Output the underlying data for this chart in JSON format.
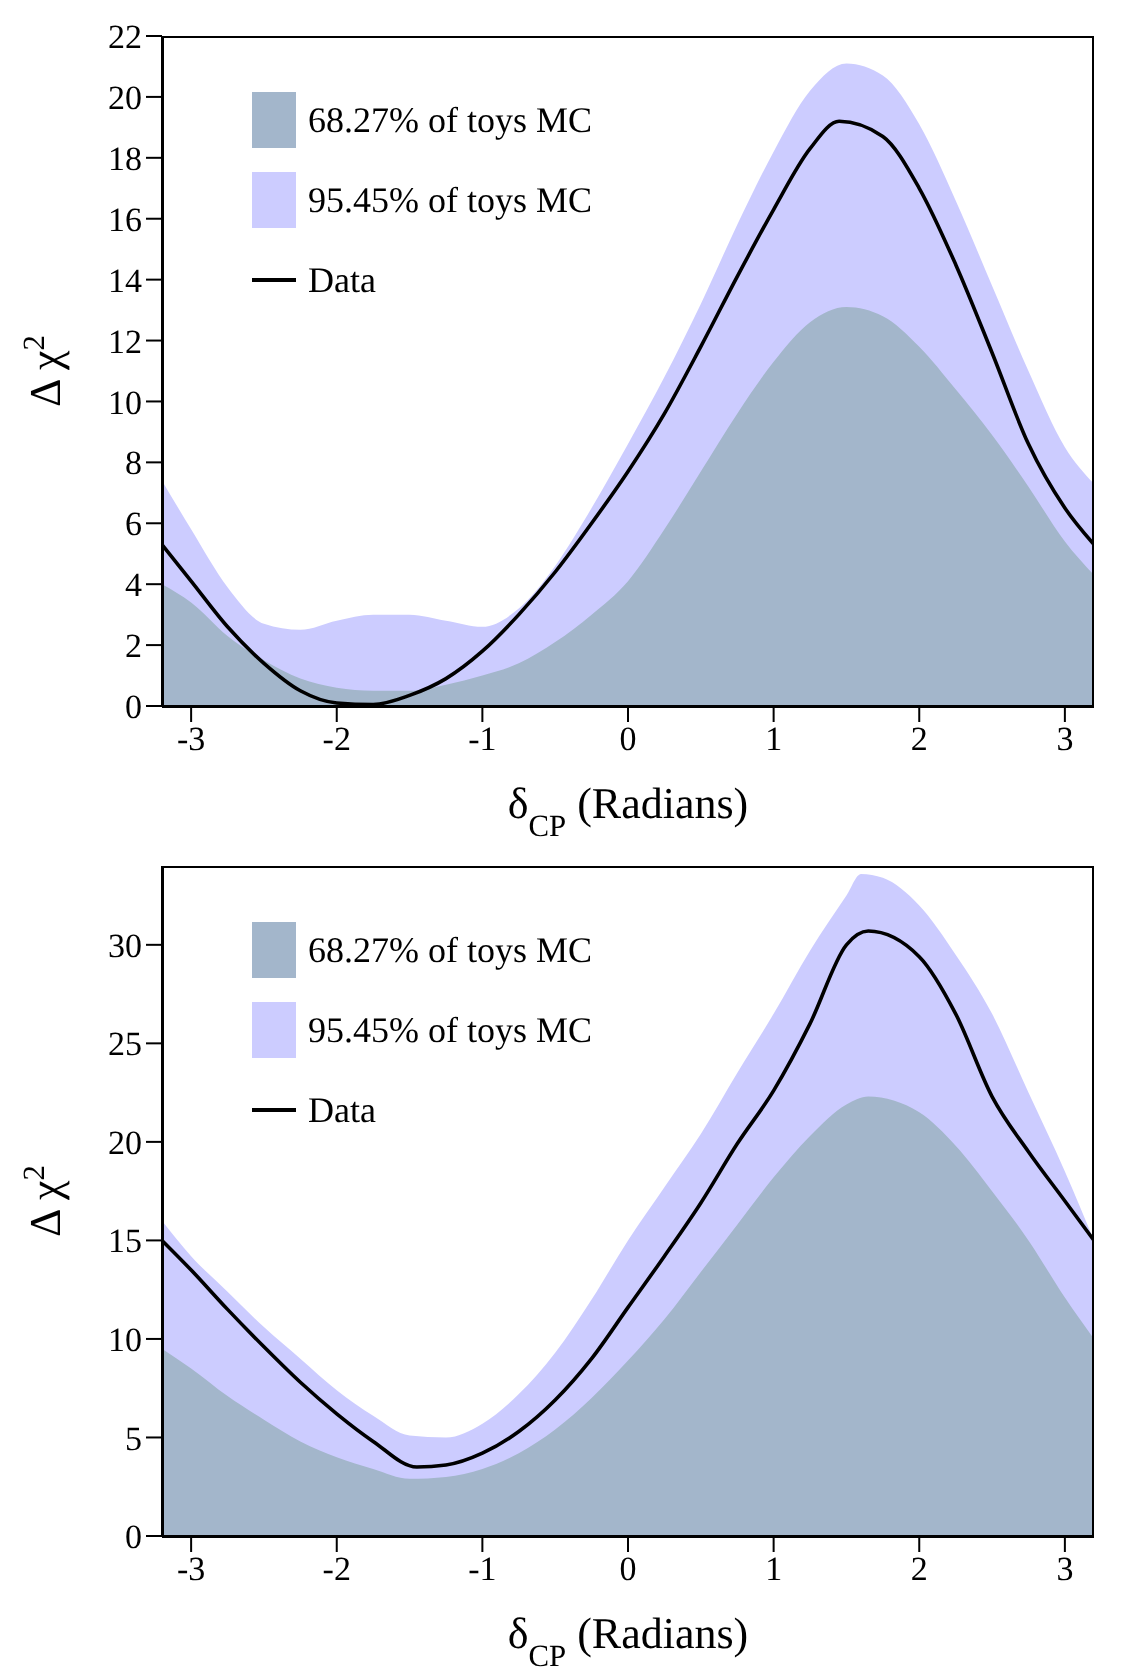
{
  "chart_data": [
    {
      "type": "area",
      "xlabel": "δ$_{CP}$ (Radians)",
      "ylabel": "Δ χ$^{2}$",
      "xlim": [
        -3.2,
        3.2
      ],
      "xticks": [
        -3,
        -2,
        -1,
        0,
        1,
        2,
        3
      ],
      "ylim": [
        0,
        22
      ],
      "yticks": [
        0,
        2,
        4,
        6,
        8,
        10,
        12,
        14,
        16,
        18,
        20,
        22
      ],
      "legend": "top left",
      "series": [
        {
          "name": "68.27% of toys MC",
          "color": "#a3b6cb",
          "x": [
            -3.2,
            -3,
            -2.75,
            -2.5,
            -2.25,
            -2,
            -1.75,
            -1.5,
            -1.25,
            -1,
            -0.75,
            -0.5,
            -0.25,
            0,
            0.25,
            0.5,
            0.75,
            1,
            1.25,
            1.5,
            1.75,
            2,
            2.25,
            2.5,
            2.75,
            3,
            3.2
          ],
          "values": [
            4.0,
            3.4,
            2.3,
            1.5,
            0.9,
            0.6,
            0.5,
            0.5,
            0.7,
            1.0,
            1.4,
            2.1,
            3.0,
            4.1,
            5.8,
            7.7,
            9.6,
            11.3,
            12.6,
            13.1,
            12.8,
            11.8,
            10.4,
            8.9,
            7.2,
            5.4,
            4.3
          ]
        },
        {
          "name": "95.45% of toys MC",
          "color": "#ccccff",
          "x": [
            -3.2,
            -3,
            -2.75,
            -2.5,
            -2.25,
            -2,
            -1.75,
            -1.5,
            -1.25,
            -1,
            -0.75,
            -0.5,
            -0.25,
            0,
            0.25,
            0.5,
            0.75,
            1,
            1.25,
            1.5,
            1.75,
            2,
            2.25,
            2.5,
            2.75,
            3,
            3.2
          ],
          "values": [
            7.4,
            5.8,
            3.9,
            2.7,
            2.5,
            2.8,
            3.0,
            3.0,
            2.8,
            2.6,
            3.2,
            4.6,
            6.5,
            8.6,
            10.8,
            13.2,
            15.8,
            18.2,
            20.2,
            21.1,
            20.7,
            19.1,
            16.6,
            13.8,
            11.0,
            8.5,
            7.3
          ]
        },
        {
          "name": "Data",
          "type": "line",
          "color": "#000000",
          "x": [
            -3.2,
            -3,
            -2.75,
            -2.5,
            -2.25,
            -2,
            -1.75,
            -1.5,
            -1.25,
            -1,
            -0.75,
            -0.5,
            -0.25,
            0,
            0.25,
            0.5,
            0.75,
            1,
            1.25,
            1.45,
            1.75,
            2,
            2.25,
            2.5,
            2.75,
            3,
            3.2
          ],
          "values": [
            5.3,
            4.1,
            2.6,
            1.4,
            0.5,
            0.1,
            0.05,
            0.35,
            0.9,
            1.8,
            3.0,
            4.4,
            6.0,
            7.7,
            9.6,
            11.8,
            14.1,
            16.3,
            18.3,
            19.2,
            18.7,
            17.0,
            14.5,
            11.6,
            8.6,
            6.5,
            5.3
          ]
        }
      ]
    },
    {
      "type": "area",
      "xlabel": "δ$_{CP}$ (Radians)",
      "ylabel": "Δ χ$^{2}$",
      "xlim": [
        -3.2,
        3.2
      ],
      "xticks": [
        -3,
        -2,
        -1,
        0,
        1,
        2,
        3
      ],
      "ylim": [
        0,
        34
      ],
      "yticks": [
        0,
        5,
        10,
        15,
        20,
        25,
        30
      ],
      "legend": "top left",
      "series": [
        {
          "name": "68.27% of toys MC",
          "color": "#a3b6cb",
          "x": [
            -3.2,
            -3,
            -2.75,
            -2.5,
            -2.25,
            -2,
            -1.75,
            -1.5,
            -1.25,
            -1,
            -0.75,
            -0.5,
            -0.25,
            0,
            0.25,
            0.5,
            0.75,
            1,
            1.25,
            1.5,
            1.65,
            2,
            2.25,
            2.5,
            2.75,
            3,
            3.2
          ],
          "values": [
            9.5,
            8.5,
            7.1,
            5.9,
            4.8,
            4.0,
            3.4,
            2.9,
            3.0,
            3.4,
            4.2,
            5.4,
            7.0,
            8.9,
            11.0,
            13.4,
            15.8,
            18.2,
            20.3,
            21.9,
            22.3,
            21.5,
            19.8,
            17.5,
            15.0,
            12.1,
            10.0
          ]
        },
        {
          "name": "95.45% of toys MC",
          "color": "#ccccff",
          "x": [
            -3.2,
            -3,
            -2.75,
            -2.5,
            -2.25,
            -2,
            -1.75,
            -1.5,
            -1.25,
            -1,
            -0.75,
            -0.5,
            -0.25,
            0,
            0.25,
            0.5,
            0.75,
            1,
            1.25,
            1.5,
            1.6,
            1.75,
            2,
            2.25,
            2.5,
            2.75,
            3,
            3.2
          ],
          "values": [
            16.0,
            14.2,
            12.4,
            10.6,
            9.0,
            7.4,
            6.1,
            5.1,
            5.0,
            5.7,
            7.2,
            9.3,
            12.0,
            15.0,
            17.7,
            20.4,
            23.5,
            26.5,
            29.7,
            32.5,
            33.6,
            33.4,
            32.0,
            29.5,
            26.5,
            22.5,
            18.5,
            15.0
          ]
        },
        {
          "name": "Data",
          "type": "line",
          "color": "#000000",
          "x": [
            -3.2,
            -3,
            -2.75,
            -2.5,
            -2.25,
            -2,
            -1.75,
            -1.45,
            -1.25,
            -1,
            -0.75,
            -0.5,
            -0.25,
            0,
            0.25,
            0.5,
            0.75,
            1,
            1.25,
            1.5,
            1.65,
            2,
            2.25,
            2.5,
            2.75,
            3,
            3.2
          ],
          "values": [
            15.0,
            13.5,
            11.5,
            9.6,
            7.8,
            6.2,
            4.8,
            3.5,
            3.6,
            4.2,
            5.3,
            6.9,
            9.0,
            11.6,
            14.2,
            16.9,
            19.9,
            22.6,
            26.0,
            30.0,
            30.7,
            29.4,
            26.5,
            22.3,
            19.5,
            17.0,
            15.0
          ]
        }
      ]
    }
  ]
}
